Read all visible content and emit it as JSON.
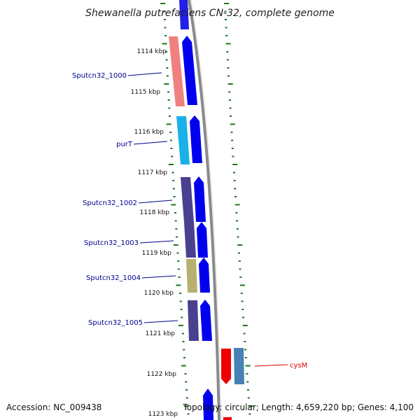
{
  "title": "Shewanella putrefaciens CN-32, complete genome",
  "footer": {
    "accession": "Accession: NC_009438",
    "summary": "Topology: circular; Length: 4,659,220 bp; Genes: 4,100"
  },
  "scale_labels": [
    "1114 kbp",
    "1115 kbp",
    "1116 kbp",
    "1117 kbp",
    "1118 kbp",
    "1119 kbp",
    "1120 kbp",
    "1121 kbp",
    "1122 kbp",
    "1123 kbp"
  ],
  "gene_labels": [
    {
      "name": "gene-label-sputcn32-1000",
      "text": "Sputcn32_1000",
      "color": "#00008b"
    },
    {
      "name": "gene-label-purt",
      "text": "purT",
      "color": "#00008b"
    },
    {
      "name": "gene-label-sputcn32-1002",
      "text": "Sputcn32_1002",
      "color": "#00008b"
    },
    {
      "name": "gene-label-sputcn32-1003",
      "text": "Sputcn32_1003",
      "color": "#00008b"
    },
    {
      "name": "gene-label-sputcn32-1004",
      "text": "Sputcn32_1004",
      "color": "#00008b"
    },
    {
      "name": "gene-label-sputcn32-1005",
      "text": "Sputcn32_1005",
      "color": "#00008b"
    },
    {
      "name": "gene-label-cysm",
      "text": "cysM",
      "color": "#e00000"
    }
  ],
  "colors": {
    "cds_arrow": "#0000ee",
    "backbone": "#888888",
    "tick": "#1a7a1a",
    "gene_pink": "#f08080",
    "gene_cyan": "#1ab0e8",
    "gene_indigo": "#4a4090",
    "gene_khaki": "#b8b070",
    "gene_steel": "#4682b4",
    "gene_red": "#ee0000"
  }
}
